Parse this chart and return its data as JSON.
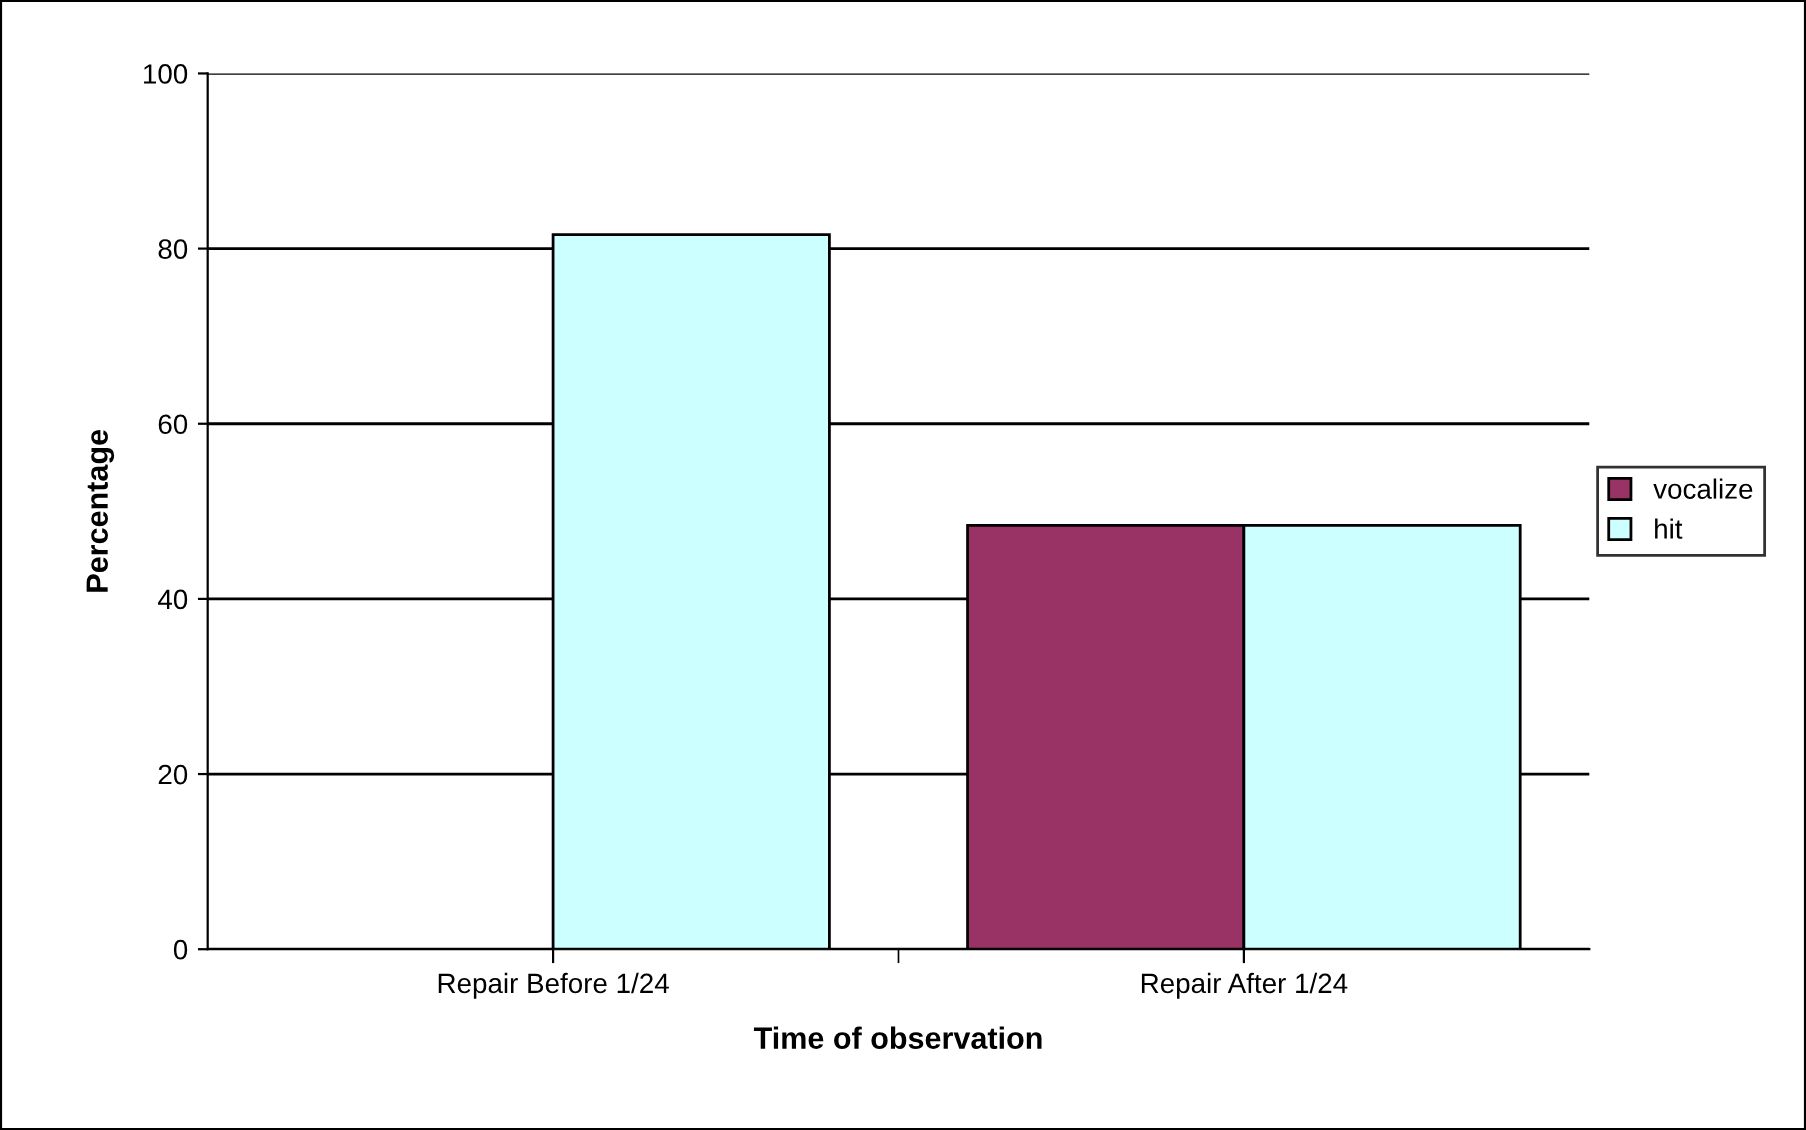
{
  "chart_data": {
    "type": "bar",
    "xlabel": "Time of observation",
    "ylabel": "Percentage",
    "categories": [
      "Repair Before 1/24",
      "Repair After 1/24"
    ],
    "series": [
      {
        "name": "vocalize",
        "color": "#993366",
        "values": [
          null,
          48.4
        ]
      },
      {
        "name": "hit",
        "color": "#ccffff",
        "values": [
          81.6,
          48.4
        ]
      }
    ],
    "ylim": [
      0,
      100
    ],
    "yticks": [
      0,
      20,
      40,
      60,
      80,
      100
    ],
    "grid": "y",
    "legend": "right"
  }
}
